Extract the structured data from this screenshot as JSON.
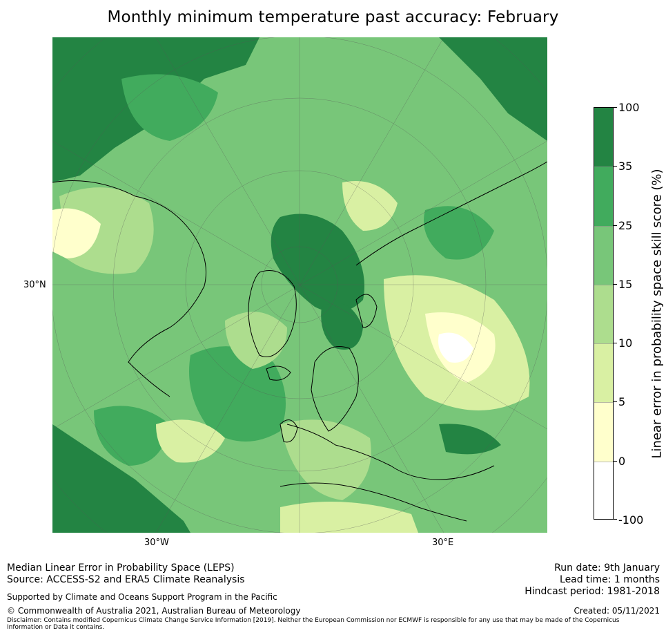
{
  "title": "Monthly minimum temperature past accuracy: February",
  "map": {
    "lat_labels": [
      "30°N"
    ],
    "lon_labels": [
      "30°W",
      "30°E"
    ]
  },
  "colorbar": {
    "title": "Linear error in probability space skill score (%)",
    "ticks": [
      "100",
      "35",
      "25",
      "15",
      "10",
      "5",
      "0",
      "-100"
    ],
    "colors": [
      "#238443",
      "#41ab5d",
      "#78c679",
      "#addd8e",
      "#d9f0a3",
      "#ffffcc",
      "#ffffff"
    ]
  },
  "footer": {
    "method": "Median Linear Error in Probability Space (LEPS)",
    "source": "Source: ACCESS-S2 and ERA5 Climate Reanalysis",
    "support": "Supported by Climate and Oceans Support Program in the Pacific",
    "copyright": "© Commonwealth of Australia 2021, Australian Bureau of Meteorology",
    "disclaimer": "Disclaimer: Contains modified Copernicus Climate Change Service Information [2019]. Neither the European Commission nor ECMWF is responsible for any use that may be made of the Copernicus Information or Data it contains.",
    "run_date": "Run date: 9th January",
    "lead_time": "Lead time: 1 months",
    "hindcast": "Hindcast period: 1981-2018",
    "created": "Created: 05/11/2021"
  }
}
